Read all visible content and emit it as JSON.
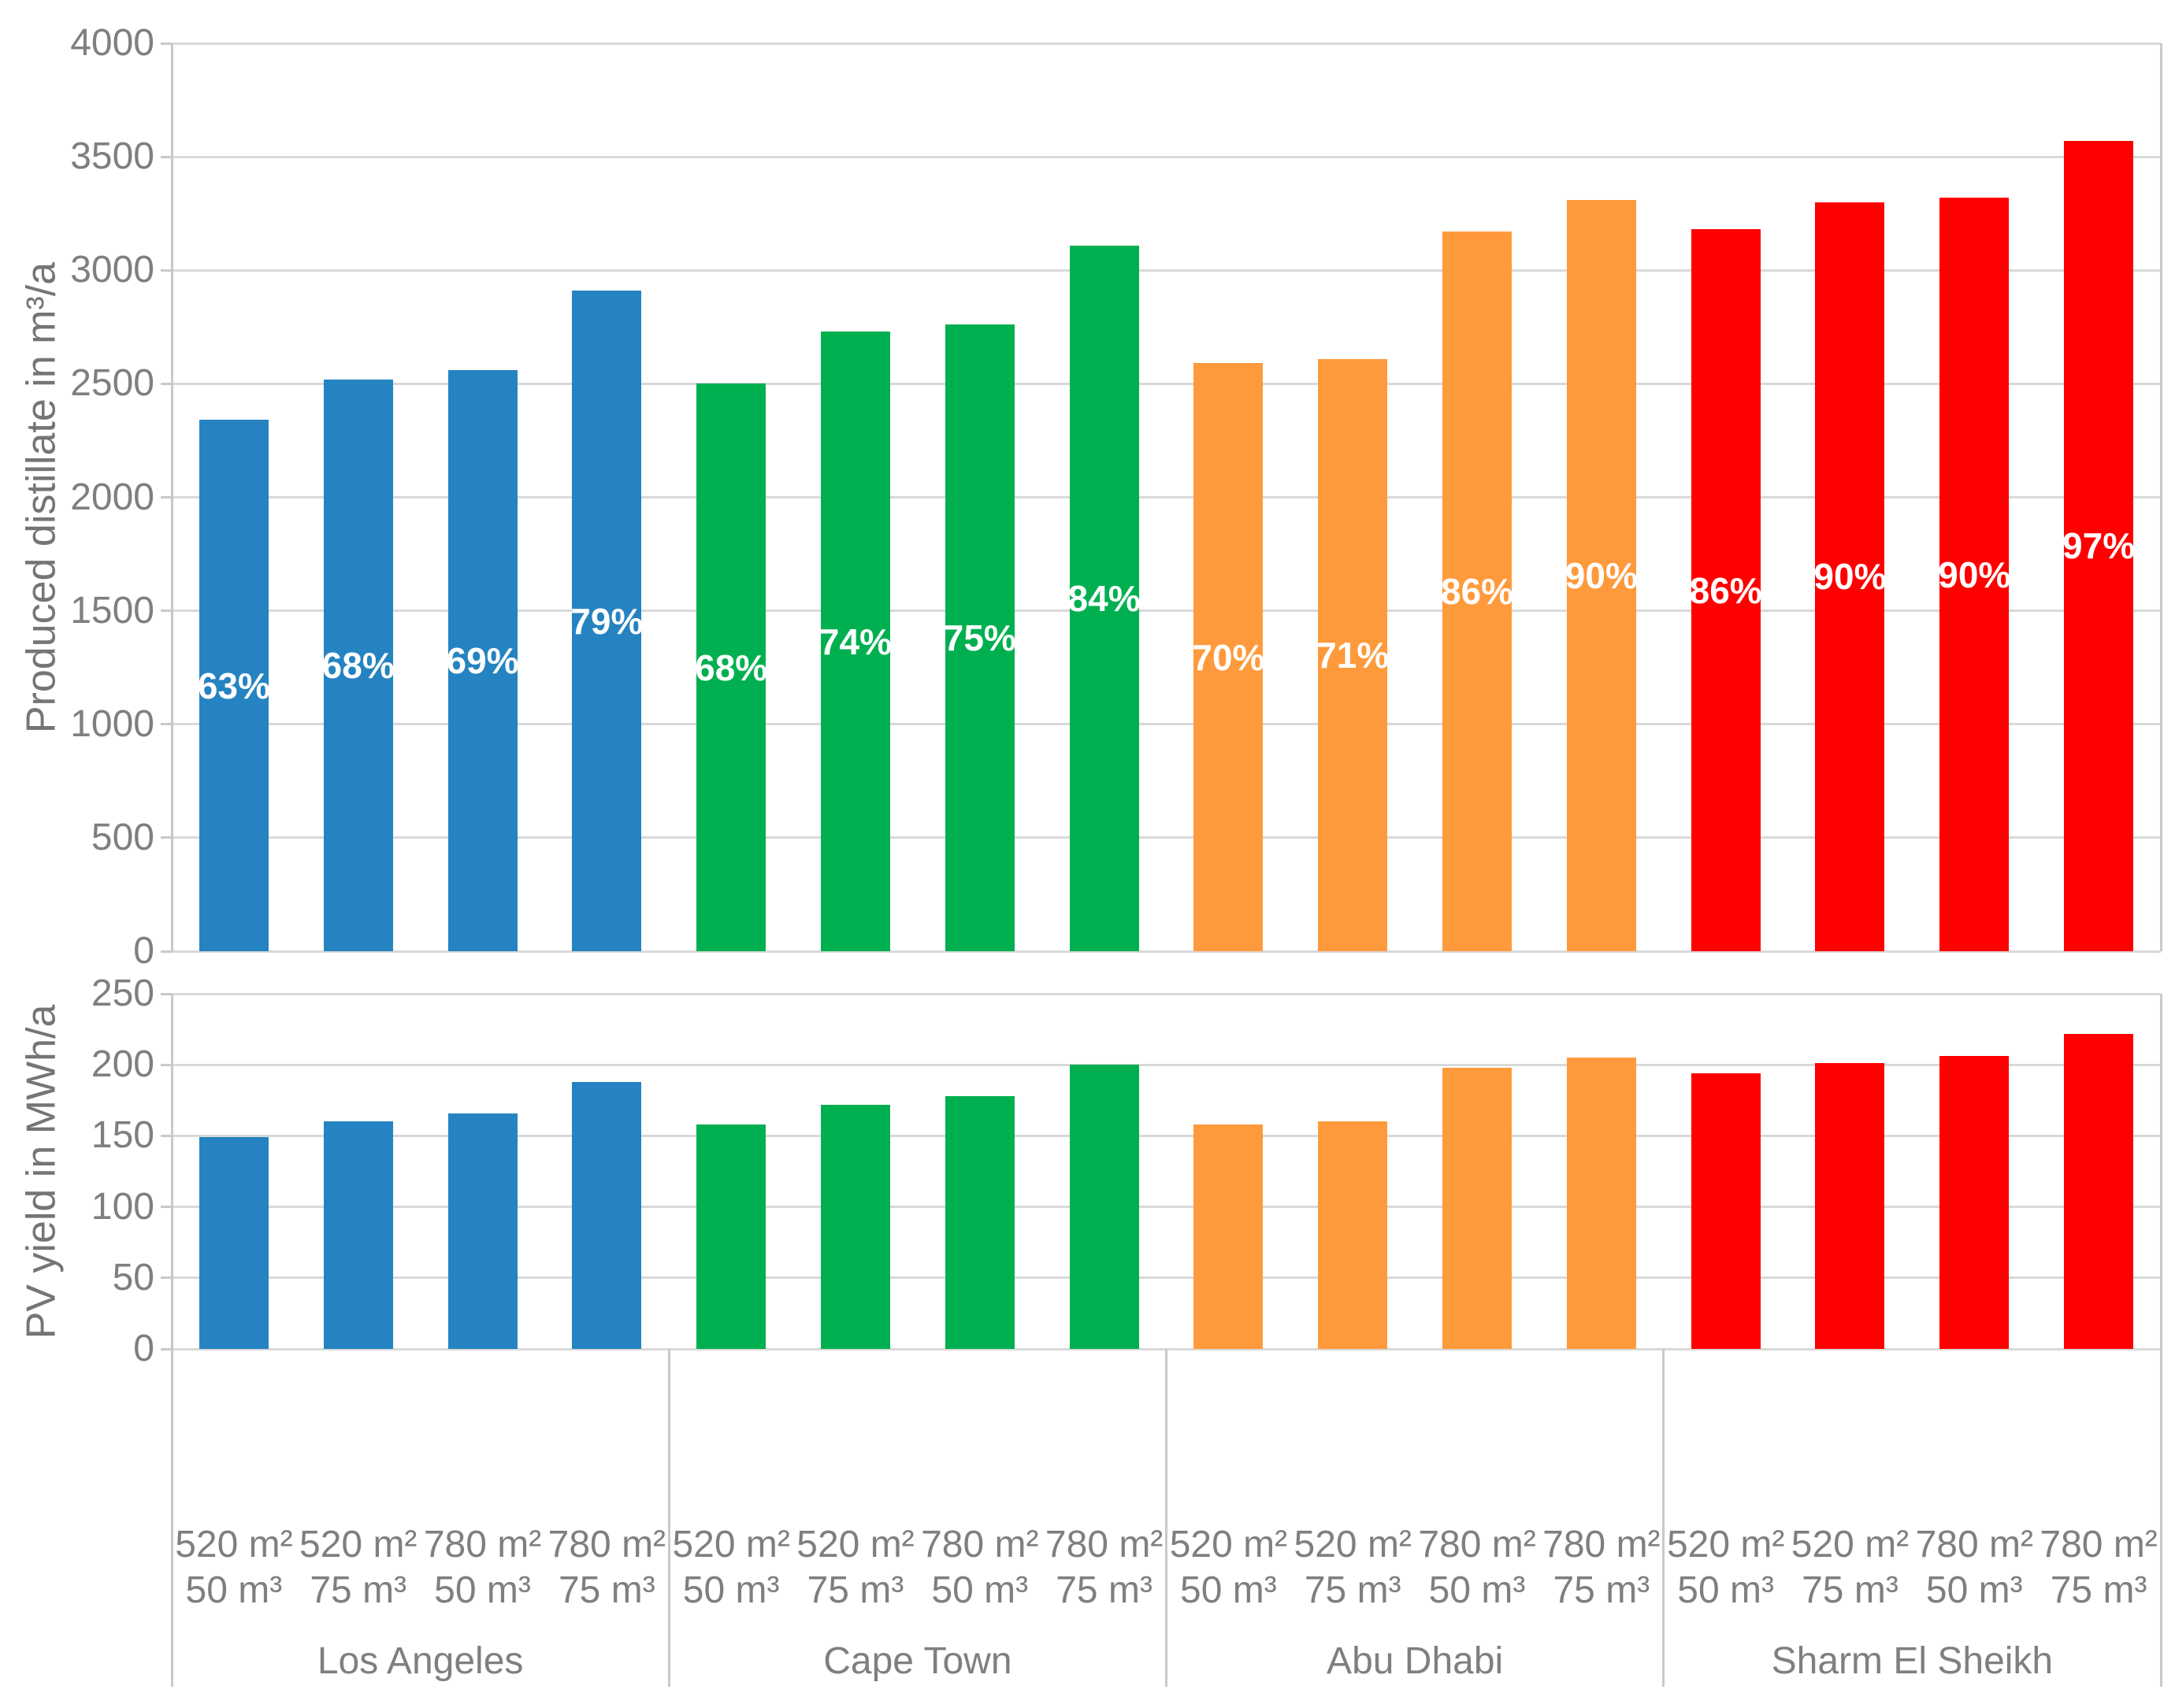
{
  "figure": {
    "background": "#FFFFFF",
    "text_color": "#7F7F7F",
    "gridline_color": "#D9D9D9",
    "axis_line_color": "#C9C9C9",
    "bar_label_color": "#FFFFFF"
  },
  "groups": [
    "Los Angeles",
    "Cape Town",
    "Abu Dhabi",
    "Sharm El Sheikh"
  ],
  "group_colors": [
    "#2583C1",
    "#00B050",
    "#FF9A3C",
    "#FF0000"
  ],
  "bar_config_labels": [
    [
      "520 m²",
      "50 m³"
    ],
    [
      "520 m²",
      "75 m³"
    ],
    [
      "780 m²",
      "50 m³"
    ],
    [
      "780 m²",
      "75 m³"
    ]
  ],
  "chart_data": [
    {
      "type": "bar",
      "title": "",
      "ylabel": "Produced distillate in m³/a",
      "xlabel": "",
      "ylim": [
        0,
        4000
      ],
      "yticks": [
        0,
        500,
        1000,
        1500,
        2000,
        2500,
        3000,
        3500,
        4000
      ],
      "grid": true,
      "legend": "none",
      "categories": [
        "520 m² 50 m³",
        "520 m² 75 m³",
        "780 m² 50 m³",
        "780 m² 75 m³"
      ],
      "series": [
        {
          "name": "Los Angeles",
          "color": "#2583C1",
          "values": [
            2340,
            2520,
            2560,
            2910
          ],
          "bar_labels": [
            "63%",
            "68%",
            "69%",
            "79%"
          ]
        },
        {
          "name": "Cape Town",
          "color": "#00B050",
          "values": [
            2500,
            2730,
            2760,
            3110
          ],
          "bar_labels": [
            "68%",
            "74%",
            "75%",
            "84%"
          ]
        },
        {
          "name": "Abu Dhabi",
          "color": "#FF9A3C",
          "values": [
            2590,
            2610,
            3170,
            3310
          ],
          "bar_labels": [
            "70%",
            "71%",
            "86%",
            "90%"
          ]
        },
        {
          "name": "Sharm El Sheikh",
          "color": "#FF0000",
          "values": [
            3180,
            3300,
            3320,
            3570
          ],
          "bar_labels": [
            "86%",
            "90%",
            "90%",
            "97%"
          ]
        }
      ],
      "bar_label_position": "center-of-bar"
    },
    {
      "type": "bar",
      "title": "",
      "ylabel": "PV yield in MWh/a",
      "xlabel": "",
      "ylim": [
        0,
        250
      ],
      "yticks": [
        0,
        50,
        100,
        150,
        200,
        250
      ],
      "grid": true,
      "legend": "none",
      "categories": [
        "520 m² 50 m³",
        "520 m² 75 m³",
        "780 m² 50 m³",
        "780 m² 75 m³"
      ],
      "series": [
        {
          "name": "Los Angeles",
          "color": "#2583C1",
          "values": [
            149,
            160,
            166,
            188
          ]
        },
        {
          "name": "Cape Town",
          "color": "#00B050",
          "values": [
            158,
            172,
            178,
            200
          ]
        },
        {
          "name": "Abu Dhabi",
          "color": "#FF9A3C",
          "values": [
            158,
            160,
            198,
            205
          ]
        },
        {
          "name": "Sharm El Sheikh",
          "color": "#FF0000",
          "values": [
            194,
            201,
            206,
            222
          ]
        }
      ]
    }
  ]
}
